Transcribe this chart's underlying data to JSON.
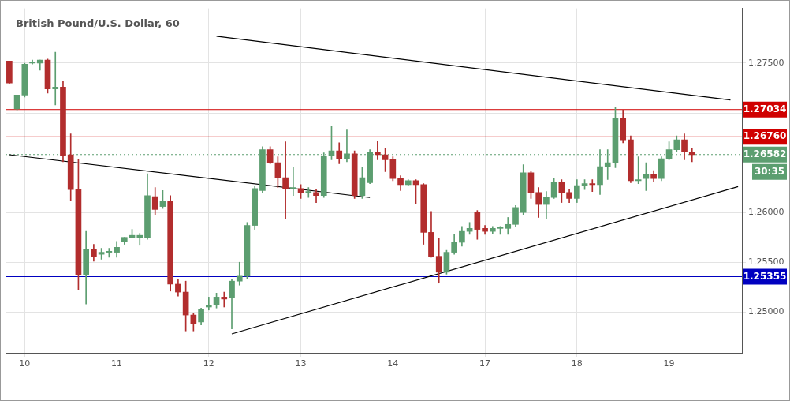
{
  "chart_data": {
    "type": "candlestick",
    "title": "British Pound/U.S. Dollar, 60",
    "categories": [
      null,
      null,
      "10",
      null,
      null,
      null,
      null,
      null,
      null,
      null,
      null,
      null,
      null,
      null,
      "11",
      null,
      null,
      null,
      null,
      null,
      null,
      null,
      null,
      null,
      null,
      null,
      "12",
      null,
      null,
      null,
      null,
      null,
      null,
      null,
      null,
      null,
      null,
      null,
      "13",
      null,
      null,
      null,
      null,
      null,
      null,
      null,
      null,
      null,
      null,
      null,
      "14",
      null,
      null,
      null,
      null,
      null,
      null,
      null,
      null,
      null,
      null,
      null,
      "17",
      null,
      null,
      null,
      null,
      null,
      null,
      null,
      null,
      null,
      null,
      null,
      "18",
      null,
      null,
      null,
      null,
      null,
      null,
      null,
      null,
      null,
      null,
      null,
      "19",
      null,
      null,
      null,
      null,
      null,
      null,
      null,
      null,
      null
    ],
    "ohlc": [
      [
        1.2752,
        1.2752,
        1.2729,
        1.273
      ],
      [
        1.2704,
        1.2718,
        1.2703,
        1.2718
      ],
      [
        1.2718,
        1.275,
        1.2716,
        1.2749
      ],
      [
        1.275,
        1.2753,
        1.2749,
        1.2751
      ],
      [
        1.275,
        1.2753,
        1.2743,
        1.2753
      ],
      [
        1.2753,
        1.2754,
        1.272,
        1.2724
      ],
      [
        1.2724,
        1.2761,
        1.2708,
        1.2726
      ],
      [
        1.2726,
        1.2732,
        1.2651,
        1.2657
      ],
      [
        1.2658,
        1.2679,
        1.2612,
        1.2623
      ],
      [
        1.2623,
        1.2653,
        1.2522,
        1.2537
      ],
      [
        1.2537,
        1.2581,
        1.2508,
        1.2563
      ],
      [
        1.2563,
        1.2568,
        1.2551,
        1.2556
      ],
      [
        1.2558,
        1.2564,
        1.2553,
        1.256
      ],
      [
        1.256,
        1.2564,
        1.2555,
        1.2561
      ],
      [
        1.256,
        1.2571,
        1.2555,
        1.2565
      ],
      [
        1.2571,
        1.2575,
        1.2568,
        1.2575
      ],
      [
        1.2575,
        1.2583,
        1.2575,
        1.2577
      ],
      [
        1.2575,
        1.2579,
        1.2567,
        1.2577
      ],
      [
        1.2575,
        1.2639,
        1.2573,
        1.2617
      ],
      [
        1.2616,
        1.2625,
        1.2598,
        1.2603
      ],
      [
        1.2606,
        1.2622,
        1.2604,
        1.2611
      ],
      [
        1.2611,
        1.2617,
        1.2521,
        1.2528
      ],
      [
        1.2528,
        1.2533,
        1.2516,
        1.252
      ],
      [
        1.252,
        1.2531,
        1.2481,
        1.2497
      ],
      [
        1.2497,
        1.2499,
        1.2481,
        1.2488
      ],
      [
        1.249,
        1.2504,
        1.2487,
        1.2503
      ],
      [
        1.2505,
        1.2515,
        1.2502,
        1.2507
      ],
      [
        1.2507,
        1.2519,
        1.2504,
        1.2515
      ],
      [
        1.2515,
        1.252,
        1.2505,
        1.2513
      ],
      [
        1.2514,
        1.2533,
        1.2483,
        1.2531
      ],
      [
        1.2531,
        1.255,
        1.2527,
        1.2536
      ],
      [
        1.2536,
        1.259,
        1.2533,
        1.2587
      ],
      [
        1.2587,
        1.2626,
        1.2583,
        1.2624
      ],
      [
        1.2622,
        1.2666,
        1.262,
        1.2663
      ],
      [
        1.2663,
        1.2666,
        1.2649,
        1.265
      ],
      [
        1.265,
        1.2656,
        1.2625,
        1.2635
      ],
      [
        1.2635,
        1.2671,
        1.2594,
        1.2624
      ],
      [
        1.2624,
        1.2645,
        1.2617,
        1.2625
      ],
      [
        1.2624,
        1.2628,
        1.2614,
        1.262
      ],
      [
        1.262,
        1.2625,
        1.2615,
        1.2621
      ],
      [
        1.262,
        1.2623,
        1.261,
        1.2617
      ],
      [
        1.2617,
        1.266,
        1.2615,
        1.2657
      ],
      [
        1.2657,
        1.2687,
        1.2653,
        1.2662
      ],
      [
        1.2662,
        1.267,
        1.2649,
        1.2654
      ],
      [
        1.2654,
        1.2683,
        1.2651,
        1.2659
      ],
      [
        1.2659,
        1.2662,
        1.2614,
        1.2617
      ],
      [
        1.2617,
        1.2645,
        1.2614,
        1.2635
      ],
      [
        1.263,
        1.2663,
        1.2629,
        1.2661
      ],
      [
        1.2661,
        1.2672,
        1.2653,
        1.2658
      ],
      [
        1.2658,
        1.2664,
        1.2641,
        1.2653
      ],
      [
        1.2653,
        1.2656,
        1.2632,
        1.2634
      ],
      [
        1.2634,
        1.2637,
        1.2622,
        1.2628
      ],
      [
        1.2628,
        1.2633,
        1.2627,
        1.2632
      ],
      [
        1.2632,
        1.2633,
        1.2609,
        1.2628
      ],
      [
        1.2628,
        1.2629,
        1.2568,
        1.258
      ],
      [
        1.258,
        1.2601,
        1.2555,
        1.2556
      ],
      [
        1.2556,
        1.2574,
        1.2529,
        1.254
      ],
      [
        1.254,
        1.2562,
        1.2538,
        1.256
      ],
      [
        1.256,
        1.2578,
        1.2558,
        1.257
      ],
      [
        1.257,
        1.2586,
        1.2566,
        1.2581
      ],
      [
        1.2581,
        1.259,
        1.2578,
        1.2584
      ],
      [
        1.26,
        1.2602,
        1.2573,
        1.2583
      ],
      [
        1.2584,
        1.2587,
        1.2578,
        1.2581
      ],
      [
        1.2581,
        1.2586,
        1.2579,
        1.2584
      ],
      [
        1.2584,
        1.2586,
        1.2578,
        1.2585
      ],
      [
        1.2584,
        1.2595,
        1.2578,
        1.2588
      ],
      [
        1.2588,
        1.2607,
        1.2586,
        1.2605
      ],
      [
        1.26,
        1.2648,
        1.2598,
        1.264
      ],
      [
        1.264,
        1.2641,
        1.2614,
        1.262
      ],
      [
        1.262,
        1.2625,
        1.2595,
        1.2608
      ],
      [
        1.2608,
        1.2621,
        1.2594,
        1.2615
      ],
      [
        1.2615,
        1.2634,
        1.2614,
        1.263
      ],
      [
        1.263,
        1.2633,
        1.261,
        1.262
      ],
      [
        1.262,
        1.2623,
        1.261,
        1.2614
      ],
      [
        1.2614,
        1.2633,
        1.261,
        1.2627
      ],
      [
        1.2627,
        1.2633,
        1.2623,
        1.2629
      ],
      [
        1.2629,
        1.2633,
        1.2621,
        1.2628
      ],
      [
        1.2628,
        1.2663,
        1.2618,
        1.2646
      ],
      [
        1.2646,
        1.2663,
        1.2633,
        1.265
      ],
      [
        1.265,
        1.2706,
        1.2645,
        1.2695
      ],
      [
        1.2695,
        1.2703,
        1.267,
        1.2673
      ],
      [
        1.2673,
        1.2677,
        1.263,
        1.2632
      ],
      [
        1.2632,
        1.2656,
        1.2629,
        1.2633
      ],
      [
        1.2634,
        1.265,
        1.2622,
        1.2638
      ],
      [
        1.2638,
        1.2642,
        1.2631,
        1.2634
      ],
      [
        1.2634,
        1.2656,
        1.2632,
        1.2654
      ],
      [
        1.2654,
        1.2671,
        1.2653,
        1.2663
      ],
      [
        1.2663,
        1.2677,
        1.2661,
        1.2673
      ],
      [
        1.2673,
        1.2679,
        1.2653,
        1.2661
      ],
      [
        1.2661,
        1.2664,
        1.2651,
        1.2658
      ],
      null,
      null,
      null,
      null,
      null,
      null
    ],
    "colors": [
      "#b22d2d",
      "#5c9e70",
      "#5c9e70",
      "#5c9e70",
      "#5c9e70",
      "#b22d2d",
      "#5c9e70",
      "#b22d2d",
      "#b22d2d",
      "#b22d2d",
      "#5c9e70",
      "#b22d2d",
      "#5c9e70",
      "#5c9e70",
      "#5c9e70",
      "#5c9e70",
      "#5c9e70",
      "#5c9e70",
      "#5c9e70",
      "#b22d2d",
      "#5c9e70",
      "#b22d2d",
      "#b22d2d",
      "#b22d2d",
      "#b22d2d",
      "#5c9e70",
      "#5c9e70",
      "#5c9e70",
      "#b22d2d",
      "#5c9e70",
      "#5c9e70",
      "#5c9e70",
      "#5c9e70",
      "#5c9e70",
      "#b22d2d",
      "#b22d2d",
      "#b22d2d",
      "#5c9e70",
      "#b22d2d",
      "#5c9e70",
      "#b22d2d",
      "#5c9e70",
      "#5c9e70",
      "#b22d2d",
      "#5c9e70",
      "#b22d2d",
      "#5c9e70",
      "#5c9e70",
      "#b22d2d",
      "#b22d2d",
      "#b22d2d",
      "#b22d2d",
      "#5c9e70",
      "#b22d2d",
      "#b22d2d",
      "#b22d2d",
      "#b22d2d",
      "#5c9e70",
      "#5c9e70",
      "#5c9e70",
      "#5c9e70",
      "#b22d2d",
      "#b22d2d",
      "#5c9e70",
      "#5c9e70",
      "#5c9e70",
      "#5c9e70",
      "#5c9e70",
      "#b22d2d",
      "#b22d2d",
      "#5c9e70",
      "#5c9e70",
      "#b22d2d",
      "#b22d2d",
      "#5c9e70",
      "#5c9e70",
      "#b22d2d",
      "#5c9e70",
      "#5c9e70",
      "#5c9e70",
      "#b22d2d",
      "#b22d2d",
      "#5c9e70",
      "#5c9e70",
      "#b22d2d",
      "#5c9e70",
      "#5c9e70",
      "#5c9e70",
      "#b22d2d",
      "#b22d2d",
      null,
      null,
      null,
      null,
      null,
      null
    ],
    "series": [
      {
        "type": "line",
        "color": "#000000",
        "values": [
          null,
          null,
          null,
          null,
          null,
          null,
          null,
          null,
          null,
          null,
          null,
          null,
          null,
          null,
          null,
          null,
          null,
          null,
          null,
          null,
          null,
          null,
          null,
          null,
          null,
          null,
          null,
          1.2777,
          null,
          null,
          null,
          null,
          null,
          null,
          null,
          null,
          null,
          null,
          null,
          null,
          null,
          null,
          null,
          null,
          null,
          null,
          null,
          null,
          null,
          null,
          null,
          null,
          null,
          null,
          null,
          null,
          null,
          null,
          null,
          null,
          null,
          null,
          null,
          null,
          null,
          null,
          null,
          null,
          null,
          null,
          null,
          null,
          null,
          null,
          null,
          null,
          null,
          null,
          null,
          null,
          null,
          null,
          null,
          null,
          null,
          null,
          null,
          null,
          null,
          null,
          null,
          null,
          null,
          null,
          1.2713,
          null
        ]
      },
      {
        "type": "line",
        "color": "#000000",
        "values": [
          1.2658,
          null,
          null,
          null,
          null,
          null,
          null,
          null,
          null,
          null,
          null,
          null,
          null,
          null,
          null,
          null,
          null,
          null,
          null,
          null,
          null,
          null,
          null,
          null,
          null,
          null,
          null,
          null,
          null,
          null,
          null,
          null,
          null,
          null,
          null,
          null,
          null,
          null,
          null,
          null,
          null,
          null,
          null,
          null,
          null,
          null,
          null,
          1.2615,
          null,
          null,
          null,
          null,
          null,
          null,
          null,
          null,
          null,
          null,
          null,
          null,
          null,
          null,
          null,
          null,
          null,
          null,
          null,
          null,
          null,
          null,
          null,
          null,
          null,
          null,
          null,
          null,
          null,
          null,
          null,
          null,
          null,
          null,
          null,
          null,
          null,
          null,
          null,
          null,
          null,
          null,
          null,
          null,
          null,
          null,
          null,
          null
        ]
      },
      {
        "type": "line",
        "color": "#000000",
        "values": [
          null,
          null,
          null,
          null,
          null,
          null,
          null,
          null,
          null,
          null,
          null,
          null,
          null,
          null,
          null,
          null,
          null,
          null,
          null,
          null,
          null,
          null,
          null,
          null,
          null,
          null,
          null,
          null,
          null,
          1.2478,
          null,
          null,
          null,
          null,
          null,
          null,
          null,
          null,
          null,
          null,
          null,
          null,
          null,
          null,
          null,
          null,
          null,
          null,
          null,
          null,
          null,
          null,
          null,
          null,
          null,
          null,
          null,
          null,
          null,
          null,
          null,
          null,
          null,
          null,
          null,
          null,
          null,
          null,
          null,
          null,
          null,
          null,
          null,
          null,
          null,
          null,
          null,
          null,
          null,
          null,
          null,
          null,
          null,
          null,
          null,
          null,
          null,
          null,
          null,
          null,
          null,
          null,
          null,
          null,
          null,
          1.2626
        ]
      }
    ],
    "ylim": [
      1.2459,
      1.2805
    ],
    "yticks": [
      {
        "value": 1.25,
        "label": "1.25000"
      },
      {
        "value": 1.255,
        "label": "1.25500"
      },
      {
        "value": 1.26,
        "label": "1.26000"
      },
      {
        "value": 1.265,
        "label": null
      },
      {
        "value": 1.27,
        "label": null
      },
      {
        "value": 1.275,
        "label": "1.27500"
      }
    ],
    "ref_lines": [
      {
        "axis": "y",
        "value": 1.27034,
        "label": "1.27034",
        "color": "#d00000",
        "line_style": "solid"
      },
      {
        "axis": "y",
        "value": 1.2676,
        "label": "1.26760",
        "color": "#d00000",
        "line_style": "solid"
      },
      {
        "axis": "y",
        "value": 1.26582,
        "label": "1.26582",
        "color": "#5c9e70",
        "line_style": "dotted"
      },
      {
        "axis": "y",
        "value": 1.25355,
        "label": "1.25355",
        "color": "#0000c0",
        "line_style": "solid"
      }
    ],
    "annotations": [
      "30:35"
    ],
    "grid": true,
    "legend": false
  }
}
